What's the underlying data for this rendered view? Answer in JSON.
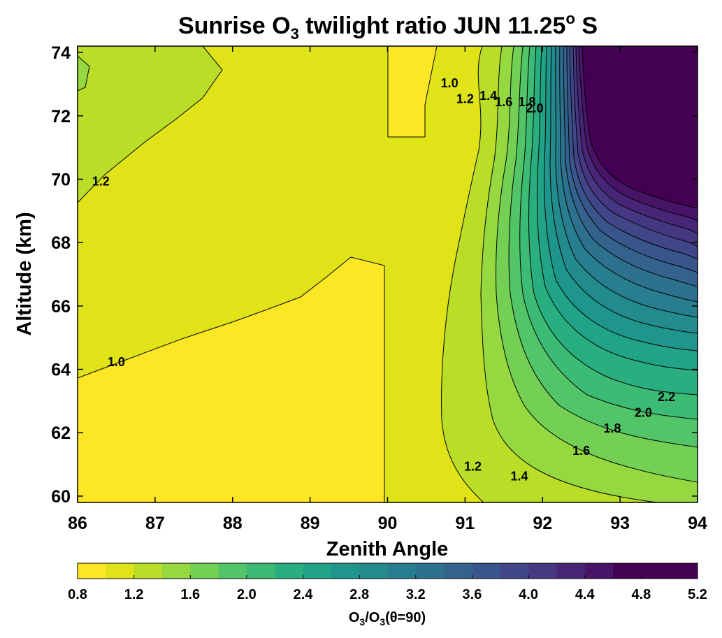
{
  "chart_data": {
    "type": "heatmap",
    "subtype": "filled-contour",
    "title": {
      "pre": "Sunrise O",
      "sub": "3",
      "mid": " twilight ratio JUN 11.25",
      "sup": "o",
      "post": " S"
    },
    "xlabel": "Zenith Angle",
    "ylabel": "Altitude (km)",
    "xlim": [
      86,
      94
    ],
    "ylim": [
      59.8,
      74.2
    ],
    "xticks": [
      "86",
      "87",
      "88",
      "89",
      "90",
      "91",
      "92",
      "93",
      "94"
    ],
    "yticks": [
      "60",
      "62",
      "64",
      "66",
      "68",
      "70",
      "72",
      "74"
    ],
    "colorbar": {
      "orientation": "horizontal",
      "range": [
        0.8,
        5.2
      ],
      "step": 0.2,
      "ticks": [
        "0.8",
        "1.2",
        "1.6",
        "2.0",
        "2.4",
        "2.8",
        "3.2",
        "3.6",
        "4.0",
        "4.4",
        "4.8",
        "5.2"
      ],
      "label": {
        "a": "O",
        "a_sub": "3",
        "b": "/O",
        "b_sub": "3",
        "c": "(θ=90)"
      }
    },
    "colormap": "viridis-reversed",
    "colors": {
      "0.8": "#fde725",
      "1.0": "#dfe318",
      "1.2": "#bade28",
      "1.4": "#95d840",
      "1.6": "#73d055",
      "1.8": "#52c569",
      "2.0": "#3cbb75",
      "2.2": "#29af7f",
      "2.4": "#20a386",
      "2.6": "#1f968b",
      "2.8": "#238a8d",
      "3.0": "#287d8e",
      "3.2": "#2d718e",
      "3.4": "#33638d",
      "3.6": "#39568c",
      "3.8": "#404688",
      "4.0": "#453781",
      "4.2": "#482677",
      "4.4": "#481467",
      "4.6": "#440154"
    },
    "contour_labels": [
      {
        "value": "1.0",
        "x": 86.5,
        "y": 64.1
      },
      {
        "value": "1.2",
        "x": 86.3,
        "y": 69.8
      },
      {
        "value": "1.0",
        "x": 90.8,
        "y": 72.9
      },
      {
        "value": "1.2",
        "x": 91.0,
        "y": 72.4
      },
      {
        "value": "1.4",
        "x": 91.3,
        "y": 72.5
      },
      {
        "value": "1.6",
        "x": 91.5,
        "y": 72.3
      },
      {
        "value": "1.8",
        "x": 91.8,
        "y": 72.3
      },
      {
        "value": "2.0",
        "x": 91.9,
        "y": 72.1
      },
      {
        "value": "1.2",
        "x": 91.1,
        "y": 60.8
      },
      {
        "value": "1.4",
        "x": 91.7,
        "y": 60.5
      },
      {
        "value": "1.6",
        "x": 92.5,
        "y": 61.3
      },
      {
        "value": "1.8",
        "x": 92.9,
        "y": 62.0
      },
      {
        "value": "2.0",
        "x": 93.3,
        "y": 62.5
      },
      {
        "value": "2.2",
        "x": 93.6,
        "y": 63.0
      }
    ]
  }
}
